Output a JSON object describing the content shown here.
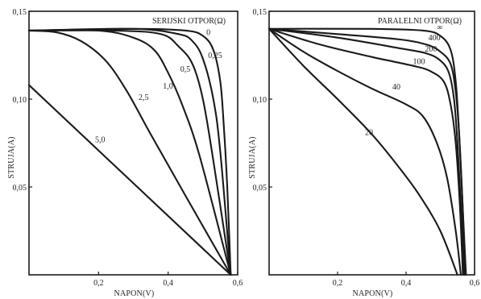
{
  "chart_data": [
    {
      "type": "line",
      "title": "SERIJSKI OTPOR(Ω)",
      "xlabel": "NAPON(V)",
      "ylabel": "STRUJA(A)",
      "xlim": [
        0,
        0.6
      ],
      "ylim": [
        0,
        0.15
      ],
      "xticks": [
        0.2,
        0.4,
        0.6
      ],
      "xtick_labels": [
        "0,2",
        "0,4",
        "0,6"
      ],
      "yticks": [
        0.05,
        0.1,
        0.15
      ],
      "ytick_labels": [
        "0,05",
        "0,10",
        "0,15"
      ],
      "grid": false,
      "series": [
        {
          "name": "0",
          "x": [
            0,
            0.3,
            0.45,
            0.5,
            0.53,
            0.55,
            0.56,
            0.57,
            0.58
          ],
          "y": [
            0.139,
            0.14,
            0.139,
            0.136,
            0.128,
            0.11,
            0.085,
            0.05,
            0
          ]
        },
        {
          "name": "0,25",
          "x": [
            0,
            0.3,
            0.43,
            0.47,
            0.5,
            0.53,
            0.55,
            0.58
          ],
          "y": [
            0.139,
            0.14,
            0.137,
            0.133,
            0.123,
            0.1,
            0.07,
            0
          ]
        },
        {
          "name": "0,5",
          "x": [
            0,
            0.25,
            0.38,
            0.43,
            0.47,
            0.5,
            0.53,
            0.58
          ],
          "y": [
            0.139,
            0.139,
            0.137,
            0.13,
            0.12,
            0.1,
            0.065,
            0
          ]
        },
        {
          "name": "1,0",
          "x": [
            0,
            0.2,
            0.3,
            0.36,
            0.4,
            0.44,
            0.49,
            0.58
          ],
          "y": [
            0.139,
            0.139,
            0.135,
            0.128,
            0.115,
            0.097,
            0.068,
            0
          ]
        },
        {
          "name": "2,5",
          "x": [
            0,
            0.08,
            0.15,
            0.22,
            0.28,
            0.35,
            0.45,
            0.58
          ],
          "y": [
            0.139,
            0.138,
            0.133,
            0.122,
            0.105,
            0.08,
            0.045,
            0
          ]
        },
        {
          "name": "5,0",
          "x": [
            0,
            0.58
          ],
          "y": [
            0.108,
            0
          ]
        }
      ],
      "curve_labels": [
        {
          "text": "0",
          "x": 0.51,
          "y": 0.1365
        },
        {
          "text": "0,25",
          "x": 0.515,
          "y": 0.1235
        },
        {
          "text": "0,5",
          "x": 0.435,
          "y": 0.1155
        },
        {
          "text": "1,0",
          "x": 0.385,
          "y": 0.106
        },
        {
          "text": "2,5",
          "x": 0.315,
          "y": 0.0995
        },
        {
          "text": "5,0",
          "x": 0.19,
          "y": 0.0755
        }
      ]
    },
    {
      "type": "line",
      "title": "PARALELNI OTPOR(Ω)",
      "xlabel": "NAPON(V)",
      "ylabel": "STRUJA(A)",
      "xlim": [
        0,
        0.6
      ],
      "ylim": [
        0,
        0.15
      ],
      "xticks": [
        0.2,
        0.4,
        0.6
      ],
      "xtick_labels": [
        "0,2",
        "0,4",
        "0,6"
      ],
      "yticks": [
        0.05,
        0.1,
        0.15
      ],
      "ytick_labels": [
        "0,05",
        "0,10",
        "0,15"
      ],
      "grid": false,
      "series": [
        {
          "name": "∞",
          "x": [
            0,
            0.3,
            0.45,
            0.5,
            0.53,
            0.545,
            0.555,
            0.565,
            0.575
          ],
          "y": [
            0.14,
            0.14,
            0.139,
            0.136,
            0.128,
            0.11,
            0.08,
            0.04,
            0
          ]
        },
        {
          "name": "400",
          "x": [
            0,
            0.2,
            0.38,
            0.46,
            0.5,
            0.53,
            0.545,
            0.555,
            0.565,
            0.572
          ],
          "y": [
            0.14,
            0.137,
            0.134,
            0.131,
            0.127,
            0.12,
            0.104,
            0.08,
            0.04,
            0
          ]
        },
        {
          "name": "200",
          "x": [
            0,
            0.2,
            0.38,
            0.46,
            0.5,
            0.525,
            0.54,
            0.55,
            0.56,
            0.57
          ],
          "y": [
            0.14,
            0.135,
            0.129,
            0.126,
            0.122,
            0.115,
            0.1,
            0.075,
            0.04,
            0
          ]
        },
        {
          "name": "100",
          "x": [
            0,
            0.15,
            0.3,
            0.42,
            0.47,
            0.51,
            0.53,
            0.545,
            0.557,
            0.566
          ],
          "y": [
            0.14,
            0.131,
            0.124,
            0.119,
            0.116,
            0.11,
            0.097,
            0.075,
            0.04,
            0
          ]
        },
        {
          "name": "40",
          "x": [
            0,
            0.1,
            0.2,
            0.3,
            0.4,
            0.45,
            0.49,
            0.52,
            0.545,
            0.56
          ],
          "y": [
            0.14,
            0.127,
            0.116,
            0.106,
            0.097,
            0.09,
            0.075,
            0.055,
            0.025,
            0
          ]
        },
        {
          "name": "20",
          "x": [
            0,
            0.1,
            0.2,
            0.3,
            0.38,
            0.44,
            0.5,
            0.55
          ],
          "y": [
            0.14,
            0.119,
            0.1,
            0.08,
            0.061,
            0.045,
            0.025,
            0
          ]
        }
      ],
      "curve_labels": [
        {
          "text": "∞",
          "x": 0.49,
          "y": 0.1395
        },
        {
          "text": "400",
          "x": 0.465,
          "y": 0.1335
        },
        {
          "text": "200",
          "x": 0.455,
          "y": 0.127
        },
        {
          "text": "100",
          "x": 0.42,
          "y": 0.12
        },
        {
          "text": "40",
          "x": 0.36,
          "y": 0.1055
        },
        {
          "text": "20",
          "x": 0.28,
          "y": 0.0795
        }
      ]
    }
  ]
}
